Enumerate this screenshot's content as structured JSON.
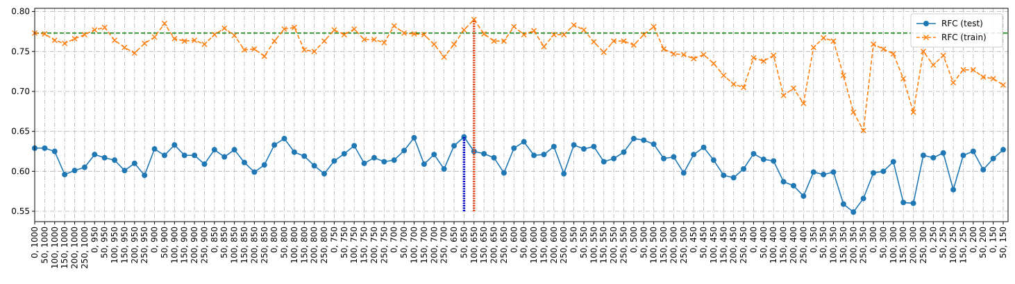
{
  "chart_data": {
    "type": "line",
    "categories": [
      "0, 1000",
      "50, 1000",
      "100, 1000",
      "150, 1000",
      "200, 1000",
      "250, 1000",
      "0, 950",
      "50, 950",
      "100, 950",
      "150, 950",
      "200, 950",
      "250, 950",
      "0, 900",
      "50, 900",
      "100, 900",
      "150, 900",
      "200, 900",
      "250, 900",
      "0, 850",
      "50, 850",
      "100, 850",
      "150, 850",
      "200, 850",
      "250, 850",
      "0, 800",
      "50, 800",
      "100, 800",
      "150, 800",
      "200, 800",
      "250, 800",
      "0, 750",
      "50, 750",
      "100, 750",
      "150, 750",
      "200, 750",
      "250, 750",
      "0, 700",
      "50, 700",
      "100, 700",
      "150, 700",
      "200, 700",
      "250, 700",
      "0, 650",
      "50, 650",
      "100, 650",
      "150, 650",
      "200, 650",
      "250, 650",
      "0, 600",
      "50, 600",
      "100, 600",
      "150, 600",
      "200, 600",
      "250, 600",
      "0, 550",
      "50, 550",
      "100, 550",
      "150, 550",
      "200, 550",
      "250, 550",
      "0, 500",
      "50, 500",
      "100, 500",
      "150, 500",
      "200, 500",
      "250, 500",
      "0, 450",
      "50, 450",
      "100, 450",
      "150, 450",
      "200, 450",
      "250, 450",
      "0, 400",
      "50, 400",
      "100, 400",
      "150, 400",
      "200, 400",
      "250, 400",
      "0, 350",
      "50, 350",
      "100, 350",
      "150, 350",
      "200, 350",
      "250, 350",
      "0, 300",
      "50, 300",
      "100, 300",
      "150, 300",
      "200, 300",
      "250, 300",
      "0, 250",
      "50, 250",
      "100, 250",
      "150, 250",
      "0, 200",
      "50, 200",
      "0, 150",
      "50, 150"
    ],
    "series": [
      {
        "name": "RFC (test)",
        "color": "#1f77b4",
        "marker": "circle",
        "dash": "solid",
        "values": [
          0.629,
          0.629,
          0.625,
          0.596,
          0.601,
          0.605,
          0.621,
          0.617,
          0.614,
          0.601,
          0.61,
          0.595,
          0.628,
          0.62,
          0.633,
          0.62,
          0.62,
          0.609,
          0.627,
          0.618,
          0.627,
          0.611,
          0.599,
          0.608,
          0.633,
          0.641,
          0.624,
          0.619,
          0.607,
          0.597,
          0.613,
          0.622,
          0.632,
          0.61,
          0.617,
          0.612,
          0.614,
          0.626,
          0.642,
          0.609,
          0.621,
          0.603,
          0.632,
          0.643,
          0.625,
          0.622,
          0.617,
          0.598,
          0.629,
          0.637,
          0.62,
          0.621,
          0.631,
          0.597,
          0.633,
          0.628,
          0.631,
          0.612,
          0.616,
          0.624,
          0.641,
          0.639,
          0.634,
          0.616,
          0.618,
          0.598,
          0.621,
          0.63,
          0.614,
          0.595,
          0.592,
          0.603,
          0.622,
          0.615,
          0.613,
          0.587,
          0.582,
          0.569,
          0.599,
          0.596,
          0.599,
          0.559,
          0.549,
          0.566,
          0.598,
          0.6,
          0.612,
          0.561,
          0.56,
          0.62,
          0.617,
          0.623,
          0.577,
          0.62,
          0.625,
          0.602,
          0.616,
          0.627
        ]
      },
      {
        "name": "RFC (train)",
        "color": "#ff7f0e",
        "marker": "x",
        "dash": "dashed",
        "values": [
          0.773,
          0.772,
          0.764,
          0.76,
          0.766,
          0.771,
          0.777,
          0.78,
          0.764,
          0.755,
          0.748,
          0.76,
          0.768,
          0.785,
          0.766,
          0.763,
          0.764,
          0.759,
          0.771,
          0.779,
          0.77,
          0.752,
          0.753,
          0.744,
          0.763,
          0.778,
          0.78,
          0.752,
          0.75,
          0.763,
          0.777,
          0.771,
          0.778,
          0.765,
          0.765,
          0.761,
          0.782,
          0.773,
          0.772,
          0.771,
          0.759,
          0.743,
          0.759,
          0.777,
          0.79,
          0.772,
          0.763,
          0.763,
          0.781,
          0.771,
          0.776,
          0.756,
          0.771,
          0.771,
          0.783,
          0.777,
          0.762,
          0.749,
          0.763,
          0.763,
          0.758,
          0.771,
          0.781,
          0.753,
          0.747,
          0.746,
          0.741,
          0.746,
          0.735,
          0.72,
          0.709,
          0.705,
          0.742,
          0.738,
          0.745,
          0.695,
          0.704,
          0.685,
          0.755,
          0.767,
          0.763,
          0.72,
          0.674,
          0.651,
          0.759,
          0.753,
          0.747,
          0.716,
          0.674,
          0.75,
          0.733,
          0.745,
          0.711,
          0.727,
          0.727,
          0.718,
          0.716,
          0.708
        ]
      }
    ],
    "hlines": [
      {
        "value": 0.773,
        "color": "#008000"
      }
    ],
    "vlines": [
      {
        "category": "50, 650",
        "ymin": 0.55,
        "ymax": 0.643,
        "color": "#0000cc"
      },
      {
        "category": "100, 650",
        "ymin": 0.55,
        "ymax": 0.79,
        "color": "#e8491d"
      }
    ],
    "ylim": [
      0.537,
      0.804
    ],
    "yticks": [
      0.55,
      {
        "value": 0.6,
        "label": "0.60"
      },
      0.65,
      {
        "value": 0.7,
        "label": "0.70"
      },
      0.75,
      {
        "value": 0.8,
        "label": "0.80"
      }
    ],
    "grid": true,
    "legend": "upper right"
  }
}
